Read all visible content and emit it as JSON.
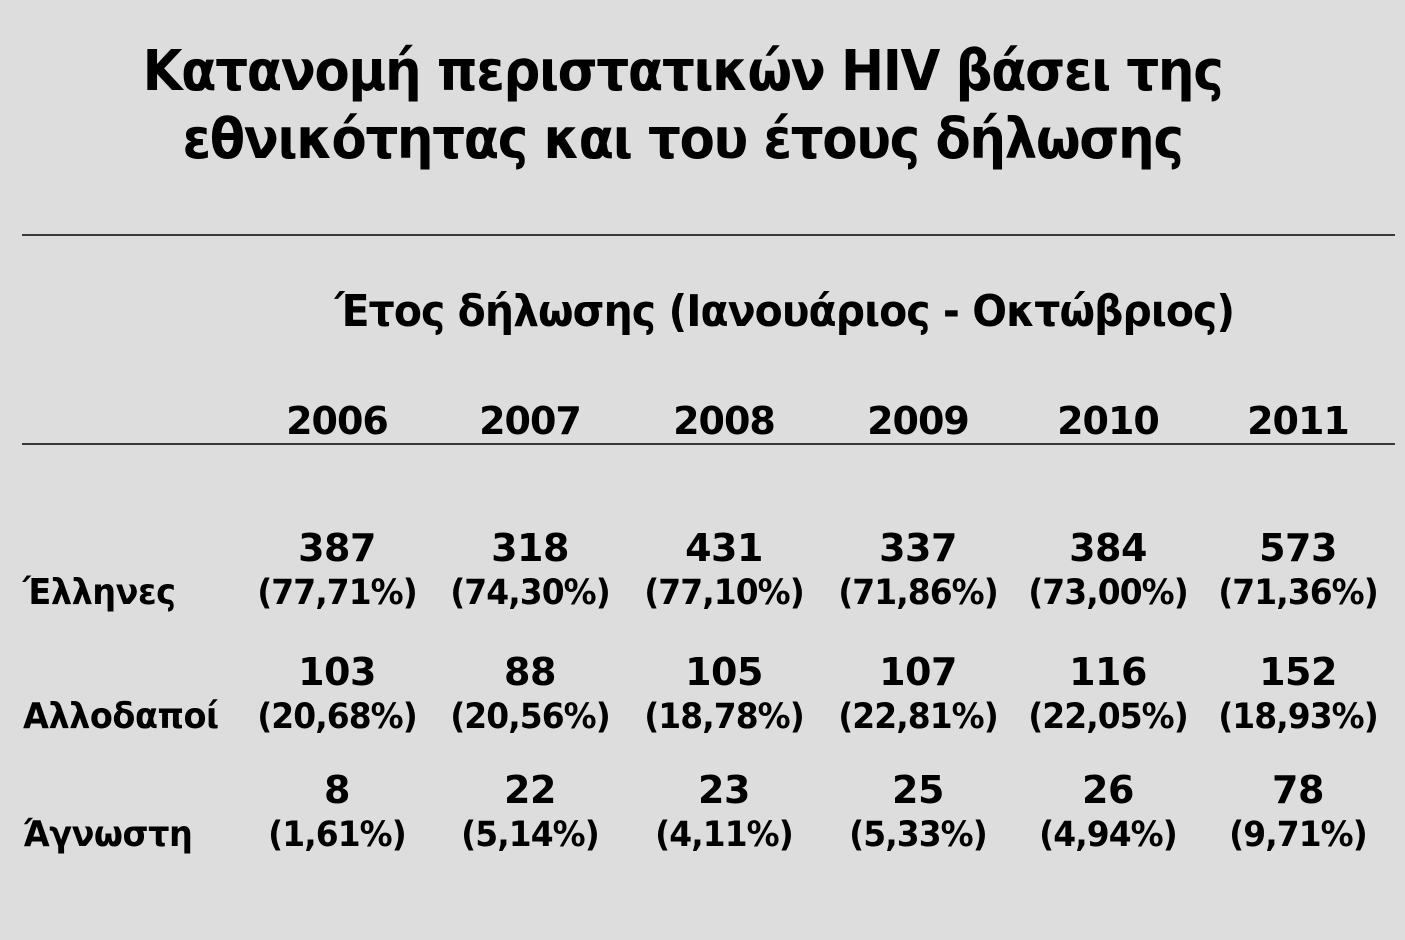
{
  "slide": {
    "title_line1": "Κατανομή περιστατικών HIV βάσει της",
    "title_line2": "εθνικότητας και του έτους δήλωσης",
    "subtitle": "Έτος δήλωσης (Ιανουάριος - Οκτώβριος)",
    "background_color": "#dddddd",
    "rule_color": "#3a3a3a"
  },
  "table": {
    "years": [
      "2006",
      "2007",
      "2008",
      "2009",
      "2010",
      "2011"
    ],
    "rows": [
      {
        "label": "Έλληνες",
        "cells": [
          {
            "count": "387",
            "pct": "(77,71%)"
          },
          {
            "count": "318",
            "pct": "(74,30%)"
          },
          {
            "count": "431",
            "pct": "(77,10%)"
          },
          {
            "count": "337",
            "pct": "(71,86%)"
          },
          {
            "count": "384",
            "pct": "(73,00%)"
          },
          {
            "count": "573",
            "pct": "(71,36%)"
          }
        ]
      },
      {
        "label": "Αλλοδαποί",
        "cells": [
          {
            "count": "103",
            "pct": "(20,68%)"
          },
          {
            "count": "88",
            "pct": "(20,56%)"
          },
          {
            "count": "105",
            "pct": "(18,78%)"
          },
          {
            "count": "107",
            "pct": "(22,81%)"
          },
          {
            "count": "116",
            "pct": "(22,05%)"
          },
          {
            "count": "152",
            "pct": "(18,93%)"
          }
        ]
      },
      {
        "label": "Άγνωστη",
        "cells": [
          {
            "count": "8",
            "pct": "(1,61%)"
          },
          {
            "count": "22",
            "pct": "(5,14%)"
          },
          {
            "count": "23",
            "pct": "(4,11%)"
          },
          {
            "count": "25",
            "pct": "(5,33%)"
          },
          {
            "count": "26",
            "pct": "(4,94%)"
          },
          {
            "count": "78",
            "pct": "(9,71%)"
          }
        ]
      }
    ]
  }
}
